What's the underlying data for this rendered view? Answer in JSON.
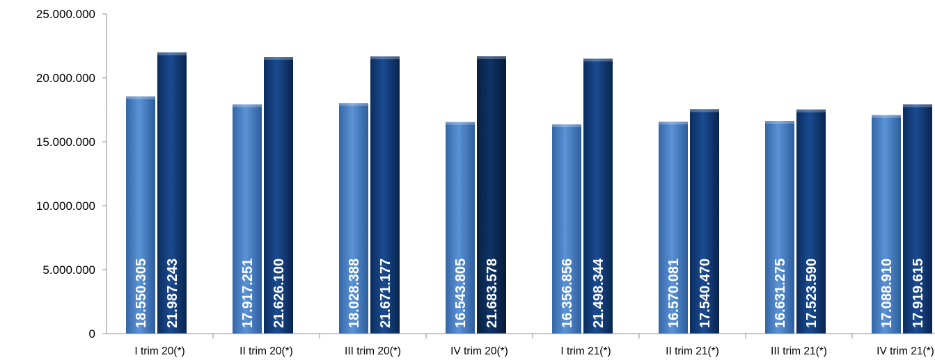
{
  "chart_data": {
    "type": "bar",
    "title": "",
    "xlabel": "",
    "ylabel": "",
    "ylim": [
      0,
      25000000
    ],
    "yticks": [
      {
        "value": 0,
        "label": "0"
      },
      {
        "value": 5000000,
        "label": "5.000.000"
      },
      {
        "value": 10000000,
        "label": "10.000.000"
      },
      {
        "value": 15000000,
        "label": "15.000.000"
      },
      {
        "value": 20000000,
        "label": "20.000.000"
      },
      {
        "value": 25000000,
        "label": "25.000.000"
      }
    ],
    "grid": false,
    "legend": "none",
    "categories": [
      "I trim 20(*)",
      "II trim 20(*)",
      "III trim 20(*)",
      "IV trim 20(*)",
      "I trim 21(*)",
      "II trim 21(*)",
      "III trim 21(*)",
      "IV trim 21(*)"
    ],
    "series": [
      {
        "color": "#4a83c9",
        "values": [
          18550305,
          17917251,
          18028388,
          16543805,
          16356856,
          16570081,
          16631275,
          17088910
        ],
        "labels": [
          "18.550.305",
          "17.917.251",
          "18.028.388",
          "16.543.805",
          "16.356.856",
          "16.570.081",
          "16.631.275",
          "17.088.910"
        ]
      },
      {
        "color": "#123f80",
        "values": [
          21987243,
          21626100,
          21671177,
          21683578,
          21498344,
          17540470,
          17523590,
          17919615
        ],
        "labels": [
          "21.987.243",
          "21.626.100",
          "21.671.177",
          "21.683.578",
          "21.498.344",
          "17.540.470",
          "17.523.590",
          "17.919.615"
        ]
      }
    ]
  }
}
